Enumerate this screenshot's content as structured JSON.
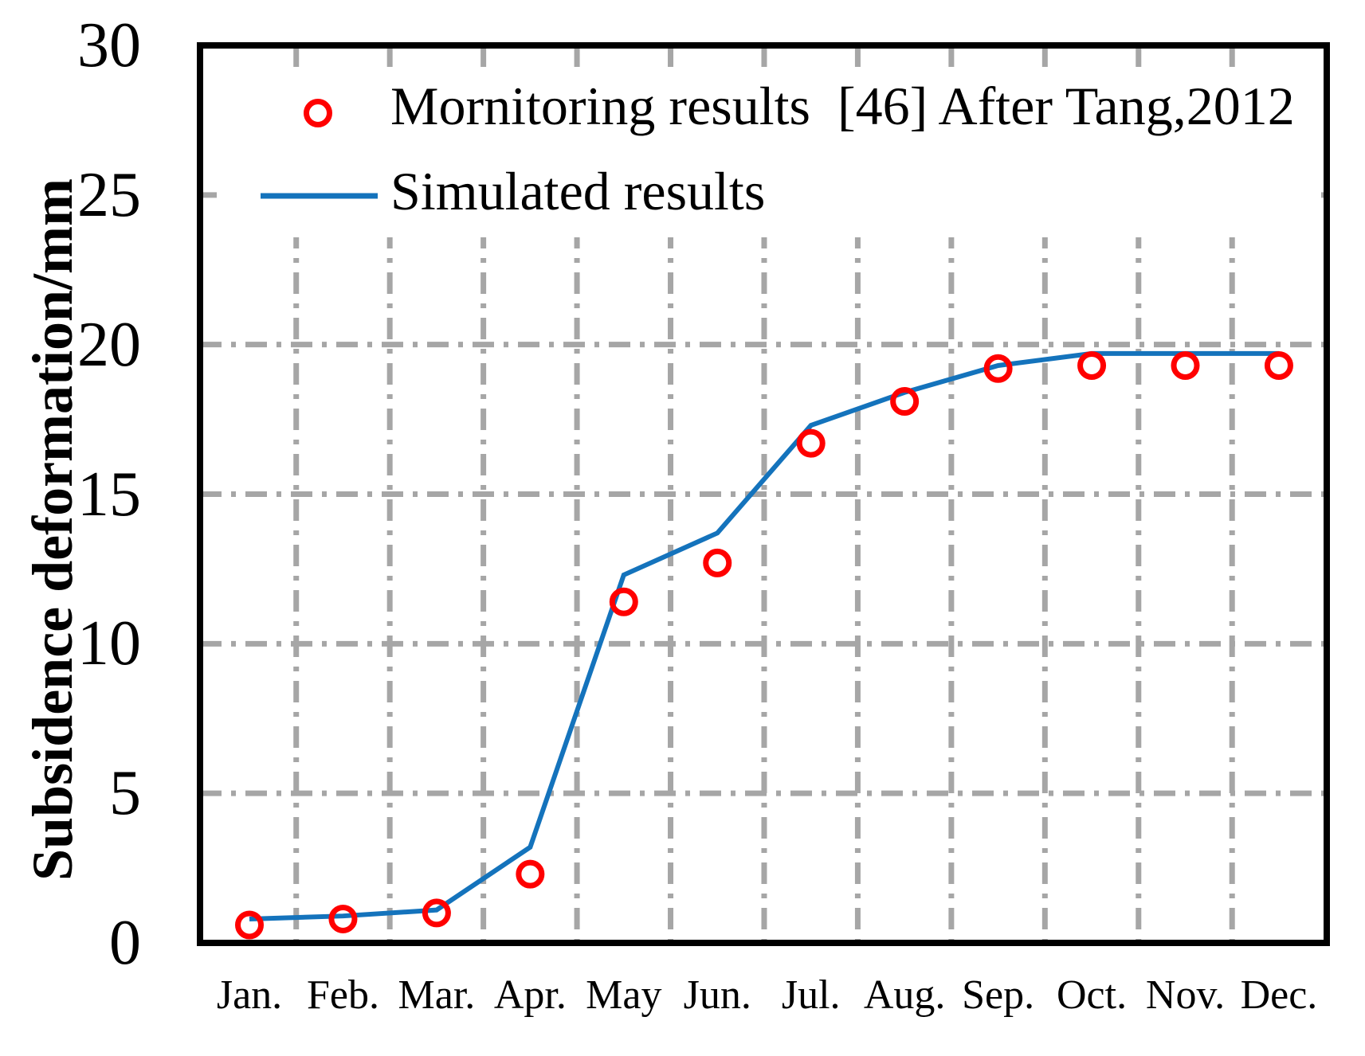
{
  "figure": {
    "background": "#FFFFFF",
    "plot_border_color": "#000000",
    "grid_color": "#A6A6A6",
    "grid_style": "dash-dot"
  },
  "chart_data": {
    "type": "line",
    "title": "",
    "categories": [
      "Jan.",
      "Feb.",
      "Mar.",
      "Apr.",
      "May",
      "Jun.",
      "Jul.",
      "Aug.",
      "Sep.",
      "Oct.",
      "Nov.",
      "Dec."
    ],
    "series": [
      {
        "name": "Mornitoring results  [46] After Tang,2012",
        "type": "scatter",
        "marker": "open-circle",
        "color": "#FF0000",
        "values": [
          0.6,
          0.8,
          1.0,
          2.3,
          11.4,
          12.7,
          16.7,
          18.1,
          19.2,
          19.3,
          19.3,
          19.3
        ]
      },
      {
        "name": "Simulated results",
        "type": "line",
        "marker": "none",
        "color": "#1473BC",
        "values": [
          0.8,
          0.9,
          1.1,
          3.2,
          12.3,
          13.7,
          17.3,
          18.4,
          19.3,
          19.7,
          19.7,
          19.7
        ]
      }
    ],
    "xlabel": "",
    "ylabel": "Subsidence deformation/mm",
    "ylim": [
      0,
      30
    ],
    "yticks": [
      0,
      5,
      10,
      15,
      20,
      25,
      30
    ],
    "grid": {
      "horizontal_at": [
        5,
        10,
        15,
        20,
        25
      ],
      "vertical": "between-month-midpoints",
      "color": "#A6A6A6",
      "style": "dash-dot"
    },
    "legend_position": "inside-top-left"
  }
}
